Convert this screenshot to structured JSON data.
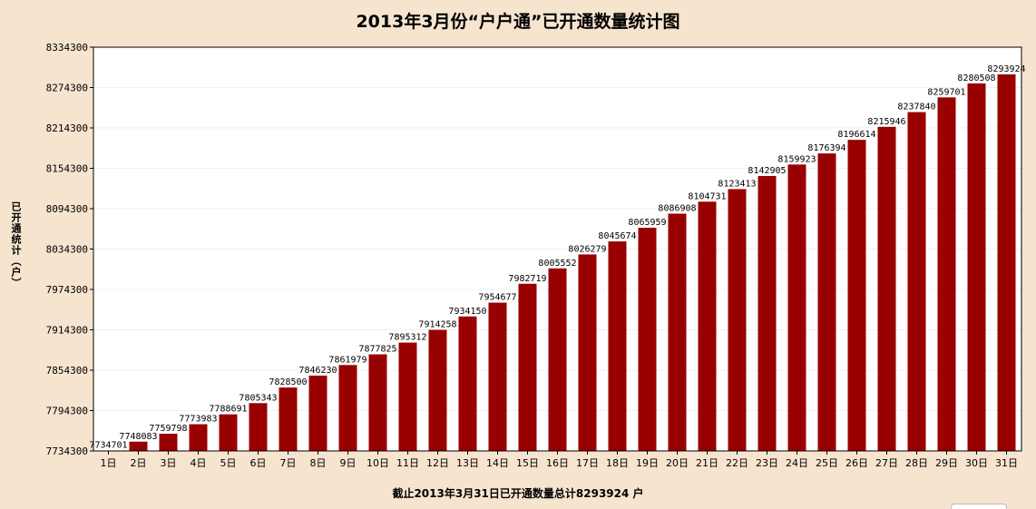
{
  "chart_data": {
    "type": "bar",
    "title": "2013年3月份“户户通”已开通数量统计图",
    "ylabel": "已开通统计（户）",
    "xlabel": "截止2013年3月31日已开通数量总计8293924 户",
    "ylim": [
      7734300,
      8334300
    ],
    "yticks": [
      7734300,
      7794300,
      7854300,
      7914300,
      7974300,
      8034300,
      8094300,
      8154300,
      8214300,
      8274300,
      8334300
    ],
    "categories": [
      "1日",
      "2日",
      "3日",
      "4日",
      "5日",
      "6日",
      "7日",
      "8日",
      "9日",
      "10日",
      "11日",
      "12日",
      "13日",
      "14日",
      "15日",
      "16日",
      "17日",
      "18日",
      "19日",
      "20日",
      "21日",
      "22日",
      "23日",
      "24日",
      "25日",
      "26日",
      "27日",
      "28日",
      "29日",
      "30日",
      "31日"
    ],
    "values": [
      7734701,
      7748083,
      7759798,
      7773983,
      7788691,
      7805343,
      7828500,
      7846230,
      7861979,
      7877825,
      7895312,
      7914258,
      7934150,
      7954677,
      7982719,
      8005552,
      8026279,
      8045674,
      8065959,
      8086908,
      8104731,
      8123413,
      8142905,
      8159923,
      8176394,
      8196614,
      8215946,
      8237840,
      8259701,
      8280508,
      8293924
    ],
    "data_labels": [
      "7734701",
      "7748083",
      "7759798",
      "7773983",
      "7788691",
      "7805343",
      "7828500",
      "7846230",
      "7861979",
      "7877825",
      "7895312",
      "7914258",
      "7934150",
      "7954677",
      "7982719",
      "8005552",
      "8026279",
      "8045674",
      "8065959",
      "8086908",
      "8104731",
      "8123413",
      "8142905",
      "8159923",
      "8176394",
      "8196614",
      "8215946",
      "8237840",
      "8259701",
      "8280508",
      "8293924"
    ],
    "grid": true,
    "legend": "none",
    "colors": {
      "bar": "#990000",
      "background": "#F7E4CF",
      "plot_background": "#FFFFFF",
      "gridline": "#F0F0F0"
    }
  }
}
